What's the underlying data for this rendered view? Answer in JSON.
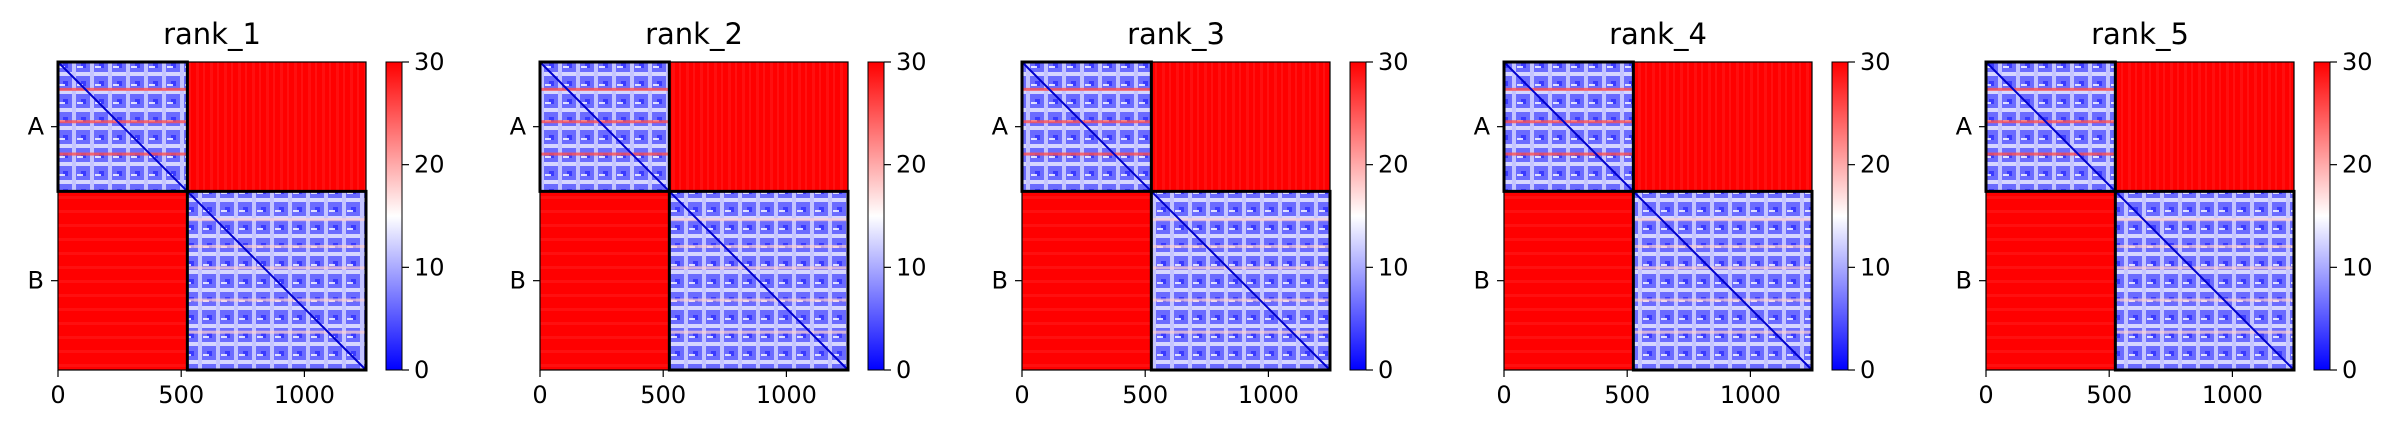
{
  "chart_data": [
    {
      "type": "heatmap",
      "title": "rank_1",
      "xlabel": "",
      "ylabel": "",
      "xlim": [
        0,
        1250
      ],
      "xticks": [
        0,
        500,
        1000
      ],
      "blocks": [
        "A",
        "B"
      ],
      "block_boundary": 525,
      "colorbar": {
        "cmap": "bwr",
        "range": [
          0,
          30
        ],
        "ticks": [
          0,
          10,
          20,
          30
        ]
      },
      "within_block_value": "low (blue, ~0-15)",
      "between_block_value": 30
    },
    {
      "type": "heatmap",
      "title": "rank_2",
      "xlabel": "",
      "ylabel": "",
      "xlim": [
        0,
        1250
      ],
      "xticks": [
        0,
        500,
        1000
      ],
      "blocks": [
        "A",
        "B"
      ],
      "block_boundary": 525,
      "colorbar": {
        "cmap": "bwr",
        "range": [
          0,
          30
        ],
        "ticks": [
          0,
          10,
          20,
          30
        ]
      },
      "within_block_value": "low (blue, ~0-15)",
      "between_block_value": 30
    },
    {
      "type": "heatmap",
      "title": "rank_3",
      "xlabel": "",
      "ylabel": "",
      "xlim": [
        0,
        1250
      ],
      "xticks": [
        0,
        500,
        1000
      ],
      "blocks": [
        "A",
        "B"
      ],
      "block_boundary": 525,
      "colorbar": {
        "cmap": "bwr",
        "range": [
          0,
          30
        ],
        "ticks": [
          0,
          10,
          20,
          30
        ]
      },
      "within_block_value": "low (blue, ~0-15)",
      "between_block_value": 30
    },
    {
      "type": "heatmap",
      "title": "rank_4",
      "xlabel": "",
      "ylabel": "",
      "xlim": [
        0,
        1250
      ],
      "xticks": [
        0,
        500,
        1000
      ],
      "blocks": [
        "A",
        "B"
      ],
      "block_boundary": 525,
      "colorbar": {
        "cmap": "bwr",
        "range": [
          0,
          30
        ],
        "ticks": [
          0,
          10,
          20,
          30
        ]
      },
      "within_block_value": "low (blue, ~0-15)",
      "between_block_value": 30
    },
    {
      "type": "heatmap",
      "title": "rank_5",
      "xlabel": "",
      "ylabel": "",
      "xlim": [
        0,
        1250
      ],
      "xticks": [
        0,
        500,
        1000
      ],
      "blocks": [
        "A",
        "B"
      ],
      "block_boundary": 525,
      "colorbar": {
        "cmap": "bwr",
        "range": [
          0,
          30
        ],
        "ticks": [
          0,
          10,
          20,
          30
        ]
      },
      "within_block_value": "low (blue, ~0-15)",
      "between_block_value": 30
    }
  ],
  "colors": {
    "low": "#0000ff",
    "mid": "#ffffff",
    "high": "#ff0000",
    "block_border": "#000000"
  }
}
